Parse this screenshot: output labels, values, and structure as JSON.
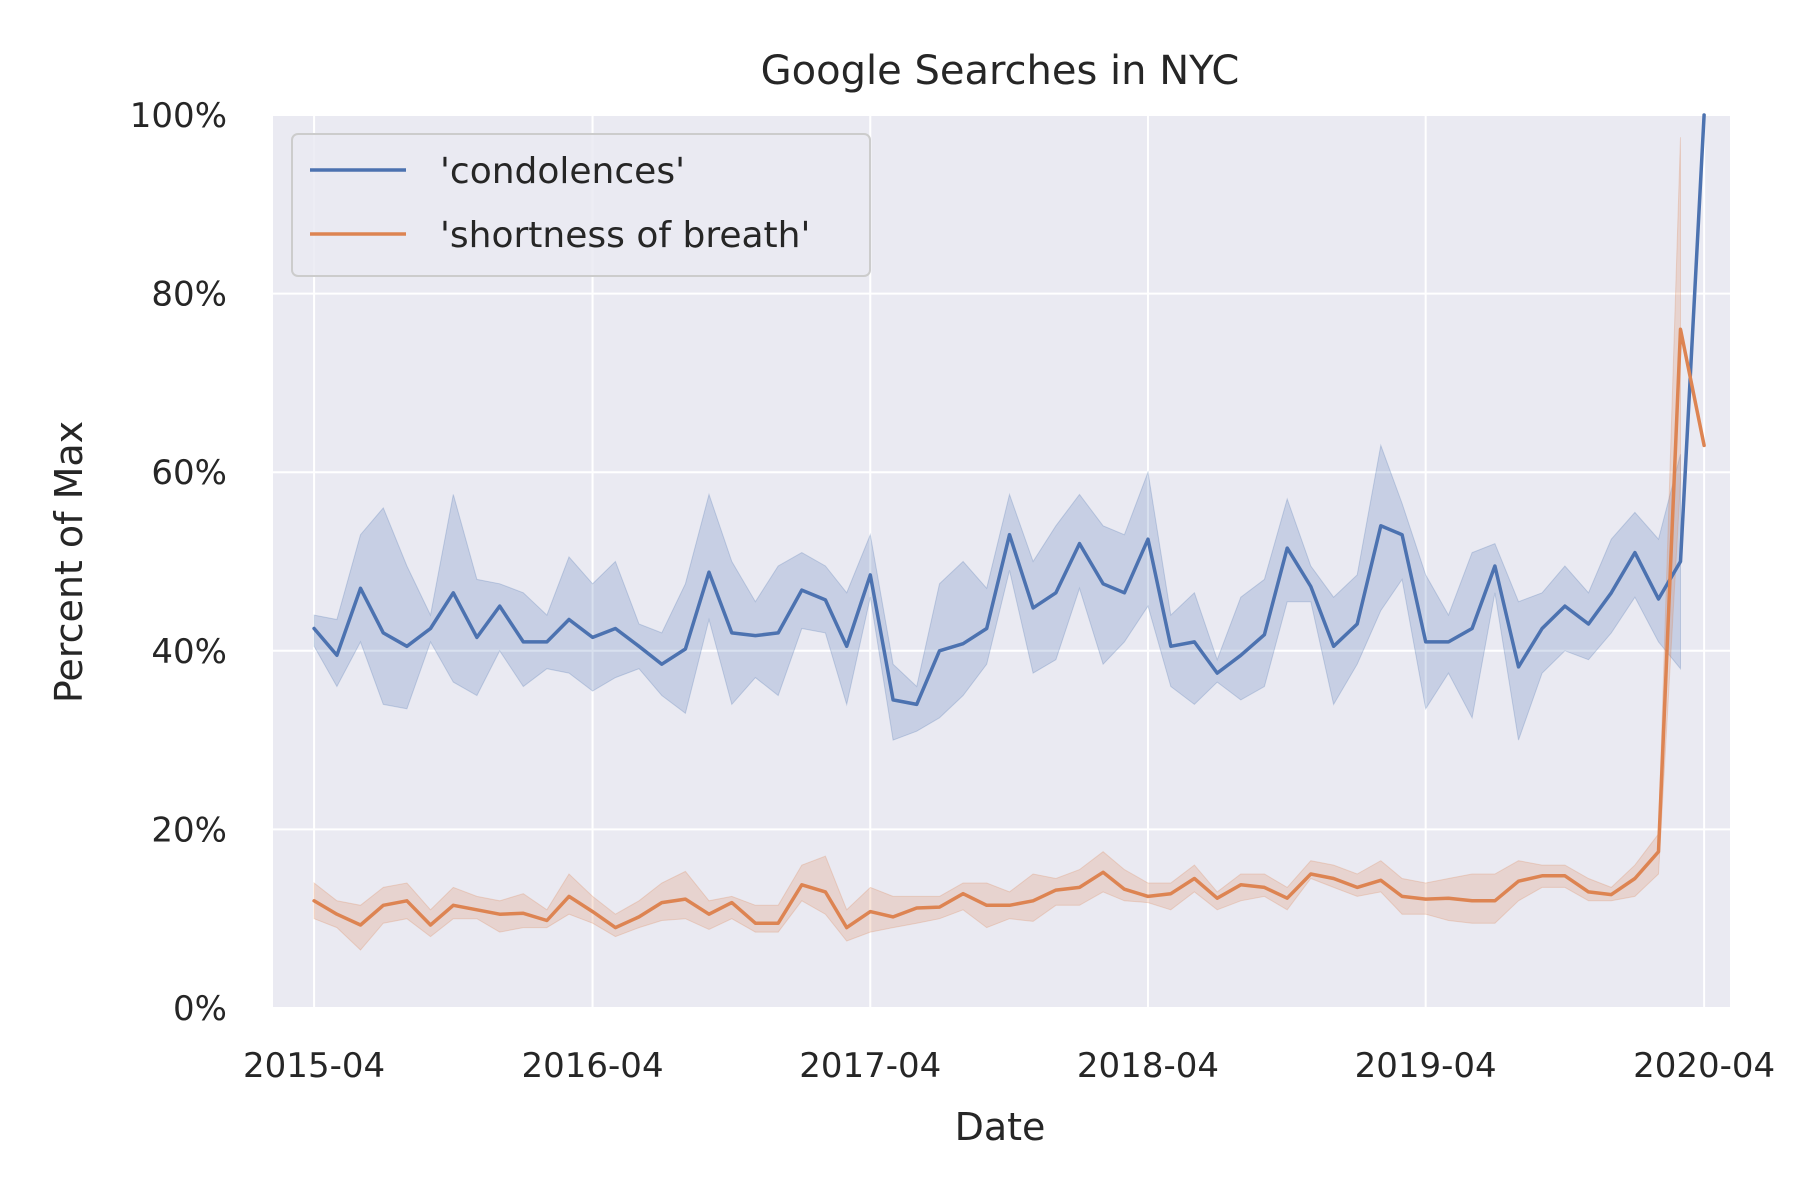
{
  "chart_data": {
    "type": "line",
    "title": "Google Searches in NYC",
    "xlabel": "Date",
    "ylabel": "Percent of Max",
    "xlim": [
      "2015-02-06",
      "2020-05-05"
    ],
    "ylim": [
      0,
      100
    ],
    "grid": true,
    "legend_position": "top-left",
    "x_tick_labels": [
      "2015-04",
      "2016-04",
      "2017-04",
      "2018-04",
      "2019-04",
      "2020-04"
    ],
    "y_tick_labels": [
      "0%",
      "20%",
      "40%",
      "60%",
      "80%",
      "100%"
    ],
    "y_tick_values": [
      0,
      20,
      40,
      60,
      80,
      100
    ],
    "x": [
      "2015-04-01",
      "2015-05-01",
      "2015-06-01",
      "2015-07-01",
      "2015-08-01",
      "2015-09-01",
      "2015-10-01",
      "2015-11-01",
      "2015-12-01",
      "2016-01-01",
      "2016-02-01",
      "2016-03-01",
      "2016-04-01",
      "2016-05-01",
      "2016-06-01",
      "2016-07-01",
      "2016-08-01",
      "2016-09-01",
      "2016-10-01",
      "2016-11-01",
      "2016-12-01",
      "2017-01-01",
      "2017-02-01",
      "2017-03-01",
      "2017-04-01",
      "2017-05-01",
      "2017-06-01",
      "2017-07-01",
      "2017-08-01",
      "2017-09-01",
      "2017-10-01",
      "2017-11-01",
      "2017-12-01",
      "2018-01-01",
      "2018-02-01",
      "2018-03-01",
      "2018-04-01",
      "2018-05-01",
      "2018-06-01",
      "2018-07-01",
      "2018-08-01",
      "2018-09-01",
      "2018-10-01",
      "2018-11-01",
      "2018-12-01",
      "2019-01-01",
      "2019-02-01",
      "2019-03-01",
      "2019-04-01",
      "2019-05-01",
      "2019-06-01",
      "2019-07-01",
      "2019-08-01",
      "2019-09-01",
      "2019-10-01",
      "2019-11-01",
      "2019-12-01",
      "2020-01-01",
      "2020-02-01",
      "2020-03-01",
      "2020-04-01"
    ],
    "series": [
      {
        "name": "'condolences'",
        "color": "#4c72b0",
        "values": [
          42.5,
          39.5,
          47,
          42,
          40.5,
          42.5,
          46.5,
          41.5,
          45,
          41,
          41,
          43.5,
          41.5,
          42.5,
          40.5,
          38.5,
          40.2,
          48.8,
          42,
          41.7,
          42,
          46.8,
          45.7,
          40.5,
          48.5,
          34.5,
          34,
          40,
          40.8,
          42.5,
          53,
          44.8,
          46.5,
          52,
          47.5,
          46.5,
          52.5,
          40.5,
          41,
          37.5,
          39.5,
          41.8,
          51.5,
          47.2,
          40.5,
          43,
          54,
          53,
          41,
          41,
          42.5,
          49.5,
          38.2,
          42.5,
          45,
          43,
          46.5,
          51,
          45.8,
          50,
          100
        ],
        "band_lower": [
          40.5,
          36,
          41,
          34,
          33.5,
          41,
          36.5,
          35,
          40,
          36,
          38,
          37.5,
          35.5,
          37,
          38,
          35,
          33,
          43.5,
          34,
          37,
          35,
          42.5,
          42,
          34,
          46,
          30,
          31,
          32.5,
          35,
          38.5,
          49,
          37.5,
          39,
          47,
          38.5,
          41,
          45,
          36,
          34,
          36.5,
          34.5,
          36,
          45.5,
          45.5,
          34,
          38.5,
          44.5,
          48,
          33.5,
          37.5,
          32.5,
          46.5,
          30,
          37.5,
          40,
          39,
          42,
          46,
          41,
          38,
          null
        ],
        "band_upper": [
          44,
          43.5,
          53,
          56,
          49.5,
          44,
          57.5,
          48,
          47.5,
          46.5,
          44,
          50.5,
          47.5,
          50,
          43,
          42,
          47.5,
          57.5,
          50,
          45.5,
          49.5,
          51,
          49.5,
          46.5,
          53,
          38.5,
          36,
          47.5,
          50,
          47,
          57.5,
          50,
          54,
          57.5,
          54,
          53,
          60,
          44,
          46.5,
          39,
          46,
          48,
          57,
          49.5,
          46,
          48.5,
          63,
          56.5,
          48.5,
          44,
          51,
          52,
          45.5,
          46.5,
          49.5,
          46.5,
          52.5,
          55.5,
          52.5,
          62,
          null
        ]
      },
      {
        "name": "'shortness of breath'",
        "color": "#dd8452",
        "values": [
          12,
          10.5,
          9.3,
          11.5,
          12,
          9.3,
          11.5,
          11,
          10.5,
          10.6,
          9.8,
          12.5,
          10.8,
          9,
          10.2,
          11.8,
          12.2,
          10.5,
          11.8,
          9.5,
          9.5,
          13.8,
          13,
          9,
          10.8,
          10.2,
          11.2,
          11.3,
          12.8,
          11.5,
          11.5,
          12,
          13.2,
          13.5,
          15.2,
          13.3,
          12.5,
          12.8,
          14.5,
          12.3,
          13.8,
          13.5,
          12.3,
          15,
          14.5,
          13.5,
          14.3,
          12.5,
          12.2,
          12.3,
          12,
          12,
          14.2,
          14.8,
          14.8,
          13,
          12.7,
          14.5,
          17.5,
          76,
          63
        ],
        "band_lower": [
          10,
          9,
          6.5,
          9.5,
          10,
          8,
          10,
          10,
          8.5,
          9,
          9,
          10.5,
          9.5,
          8,
          9,
          9.8,
          10,
          8.8,
          10,
          8.5,
          8.5,
          12,
          10.5,
          7.5,
          8.5,
          9,
          9.5,
          10,
          11,
          9,
          10,
          9.7,
          11.5,
          11.5,
          13,
          12,
          11.8,
          11,
          13,
          11,
          12,
          12.5,
          11,
          14.5,
          13.5,
          12.5,
          13,
          10.5,
          10.5,
          9.8,
          9.5,
          9.5,
          12,
          13.5,
          13.5,
          12,
          12,
          12.5,
          15,
          59,
          null
        ],
        "band_upper": [
          14,
          12,
          11.5,
          13.5,
          14,
          11,
          13.5,
          12.5,
          12,
          12.8,
          11,
          15,
          12.5,
          10.5,
          12,
          14,
          15.3,
          12,
          12.5,
          11.5,
          11.5,
          16,
          17,
          11,
          13.5,
          12.5,
          12.5,
          12.5,
          14,
          14,
          13,
          15,
          14.5,
          15.5,
          17.5,
          15.5,
          14,
          14,
          16,
          13,
          15,
          15,
          13.5,
          16.5,
          16,
          15,
          16.5,
          14.5,
          14,
          14.5,
          15,
          15,
          16.5,
          16,
          16,
          14.5,
          13.5,
          16,
          19.5,
          97.5,
          null
        ]
      }
    ]
  }
}
